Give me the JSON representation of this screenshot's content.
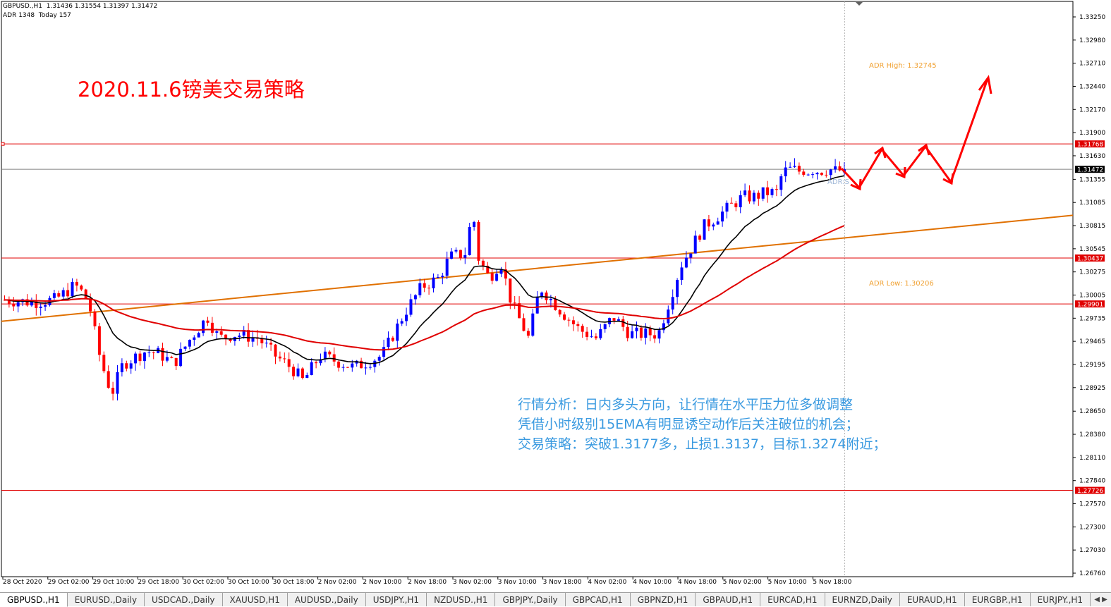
{
  "header": {
    "line1": "GBPUSD.,H1  1.31436 1.31554 1.31397 1.31472",
    "line2": "ADR 1348  Today 157"
  },
  "annotations": {
    "title": "2020.11.6镑美交易策略",
    "analysis_line1": "行情分析：日内多头方向，让行情在水平压力位多做调整",
    "analysis_line2": "凭借小时级别15EMA有明显诱空动作后关注破位的机会；",
    "analysis_line3": "交易策略：突破1.3177多，止损1.3137，目标1.3274附近；",
    "adr_high": "ADR High: 1.32745",
    "adr_low": "ADR Low: 1.30206",
    "adr_tag": "ADR:S"
  },
  "colors": {
    "bull": "#0000ff",
    "bear": "#ff0000",
    "ema_fast": "#000000",
    "ema_slow": "#e00000",
    "trendline": "#e07000",
    "hline": "#e00000",
    "price_line": "#808080",
    "title": "#ff0000",
    "analysis": "#3a9ae0",
    "adr_label": "#f0a030",
    "arrow": "#ff0000"
  },
  "chart_data": {
    "type": "candlestick",
    "symbol": "GBPUSD.",
    "timeframe": "H1",
    "ylim": [
      1.2676,
      1.3325
    ],
    "y_ticks": [
      1.3325,
      1.3298,
      1.3271,
      1.3244,
      1.3217,
      1.319,
      1.3163,
      1.31355,
      1.31085,
      1.30815,
      1.30545,
      1.30275,
      1.30005,
      1.29735,
      1.29465,
      1.29195,
      1.28925,
      1.2865,
      1.2838,
      1.2811,
      1.2784,
      1.2757,
      1.273,
      1.2703,
      1.2676
    ],
    "y_tick_labels": [
      "1.33250",
      "1.32980",
      "1.32710",
      "1.32440",
      "1.32170",
      "1.31900",
      "1.31630",
      "1.31355",
      "1.31085",
      "1.30815",
      "1.30545",
      "1.30275",
      "1.30005",
      "1.29735",
      "1.29465",
      "1.29195",
      "1.28925",
      "1.28650",
      "1.28380",
      "1.28110",
      "1.27840",
      "1.27570",
      "1.27300",
      "1.27030",
      "1.26760"
    ],
    "x_tick_labels": [
      "28 Oct 2020",
      "29 Oct 02:00",
      "29 Oct 10:00",
      "29 Oct 18:00",
      "30 Oct 02:00",
      "30 Oct 10:00",
      "30 Oct 18:00",
      "2 Nov 02:00",
      "2 Nov 10:00",
      "2 Nov 18:00",
      "3 Nov 02:00",
      "3 Nov 10:00",
      "3 Nov 18:00",
      "4 Nov 02:00",
      "4 Nov 10:00",
      "4 Nov 18:00",
      "5 Nov 02:00",
      "5 Nov 10:00",
      "5 Nov 18:00"
    ],
    "horizontal_levels": [
      1.31768,
      1.30437,
      1.29901,
      1.27726
    ],
    "horizontal_level_labels": [
      "1.31768",
      "1.30437",
      "1.29901",
      "1.27726"
    ],
    "current_price": 1.31472,
    "current_price_label": "1.31472",
    "trendline": {
      "from_bar": 0,
      "from_price": 1.297,
      "to_bar": 190,
      "to_price": 1.3069
    },
    "candles": []
  },
  "tabs": [
    {
      "label": "GBPUSD.,H1",
      "active": true
    },
    {
      "label": "EURUSD.,Daily"
    },
    {
      "label": "USDCAD.,Daily"
    },
    {
      "label": "XAUUSD,H1"
    },
    {
      "label": "AUDUSD.,Daily"
    },
    {
      "label": "USDJPY.,H1"
    },
    {
      "label": "NZDUSD.,H1"
    },
    {
      "label": "GBPJPY.,Daily"
    },
    {
      "label": "GBPCAD,H1"
    },
    {
      "label": "GBPNZD,H1"
    },
    {
      "label": "GBPAUD,H1"
    },
    {
      "label": "EURCAD,H1"
    },
    {
      "label": "EURNZD,Daily"
    },
    {
      "label": "EURAUD,H1"
    },
    {
      "label": "EURGBP.,H1"
    },
    {
      "label": "EURJPY.,H1"
    }
  ],
  "tab_scroll_icon": "scroll-arrows-icon"
}
